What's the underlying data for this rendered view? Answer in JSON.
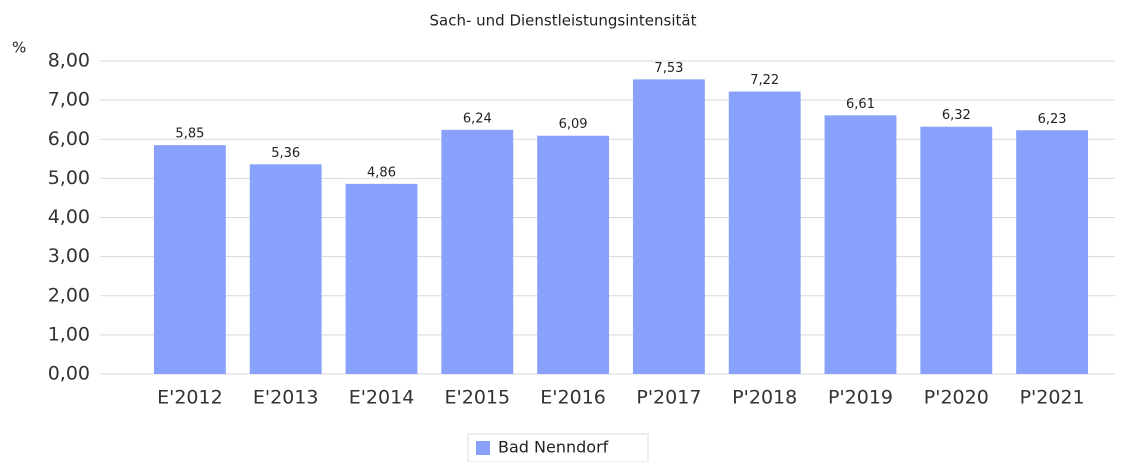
{
  "chart_data": {
    "type": "bar",
    "title": "Sach- und Dienstleistungsintensität",
    "y_label": "%",
    "categories": [
      "E'2012",
      "E'2013",
      "E'2014",
      "E'2015",
      "E'2016",
      "P'2017",
      "P'2018",
      "P'2019",
      "P'2020",
      "P'2021"
    ],
    "series": [
      {
        "name": "Bad Nenndorf",
        "color": "#88a2fb",
        "values": [
          5.85,
          5.36,
          4.86,
          6.24,
          6.09,
          7.53,
          7.22,
          6.61,
          6.32,
          6.23
        ],
        "value_labels": [
          "5,85",
          "5,36",
          "4,86",
          "6,24",
          "6,09",
          "7,53",
          "7,22",
          "6,61",
          "6,32",
          "6,23"
        ]
      }
    ],
    "ylim": [
      0,
      8
    ],
    "yticks": [
      {
        "value": 0,
        "label": "0,00"
      },
      {
        "value": 1,
        "label": "1,00"
      },
      {
        "value": 2,
        "label": "2,00"
      },
      {
        "value": 3,
        "label": "3,00"
      },
      {
        "value": 4,
        "label": "4,00"
      },
      {
        "value": 5,
        "label": "5,00"
      },
      {
        "value": 6,
        "label": "6,00"
      },
      {
        "value": 7,
        "label": "7,00"
      },
      {
        "value": 8,
        "label": "8,00"
      }
    ],
    "grid": true,
    "legend": "bottom"
  }
}
